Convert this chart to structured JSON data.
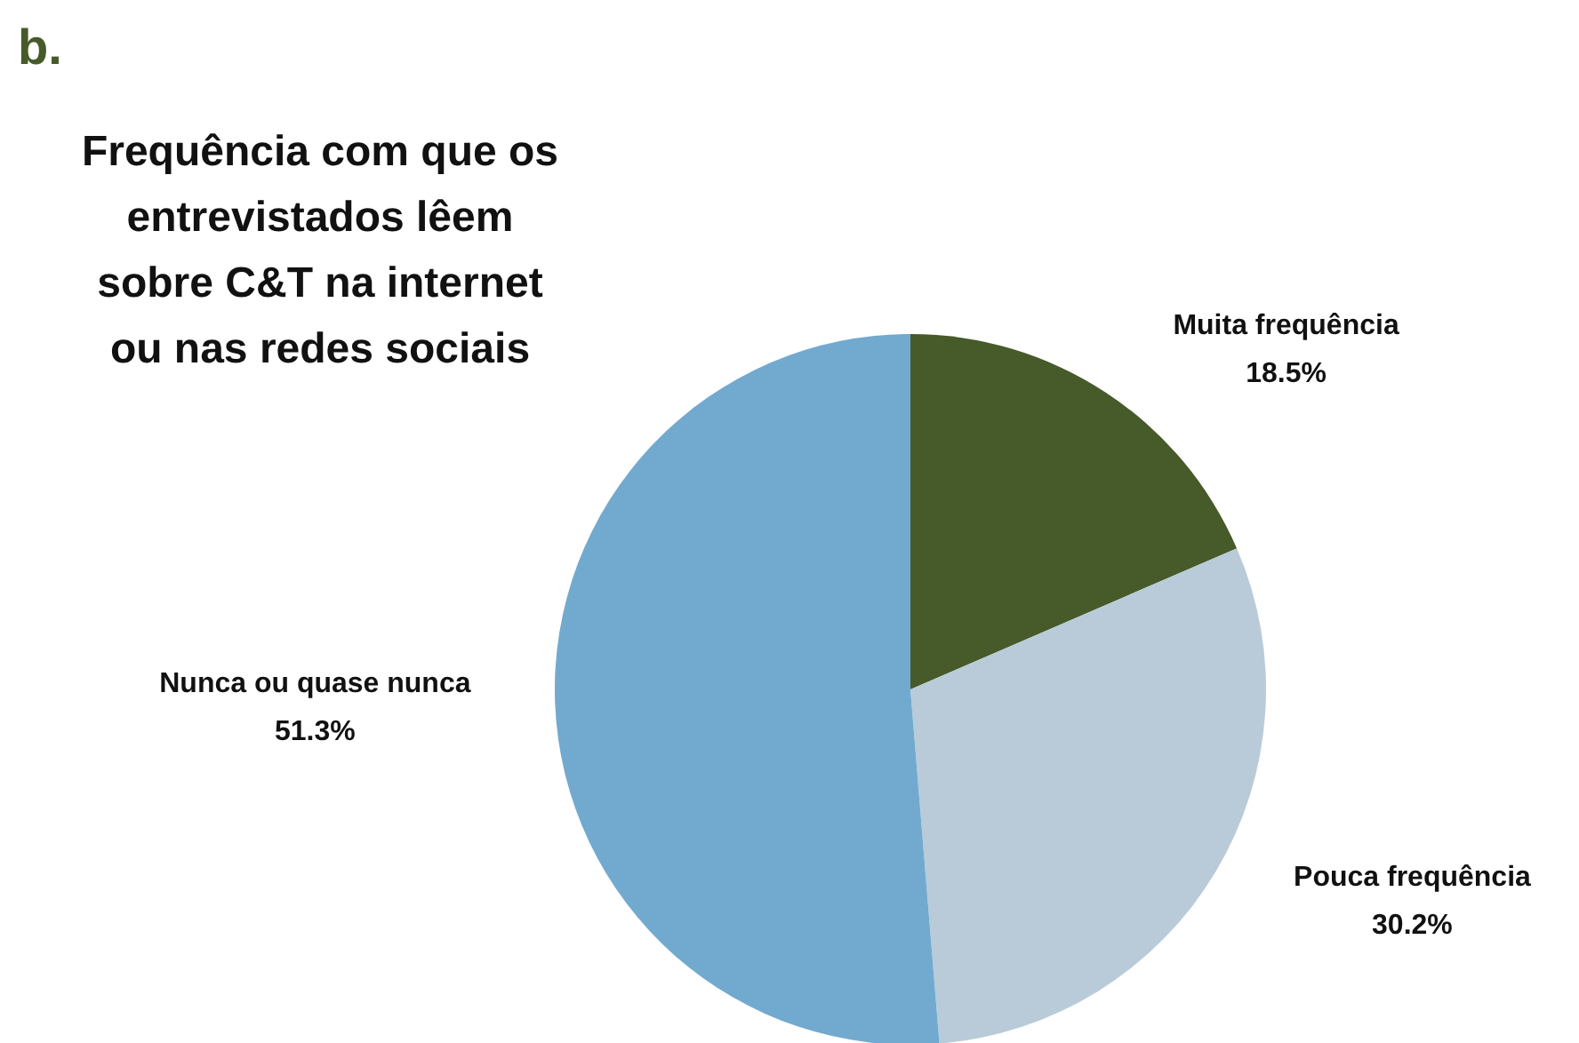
{
  "chart_data": {
    "type": "pie",
    "title": "Frequência com que os entrevistados lêem sobre C&T na internet ou nas redes sociais",
    "annotations": [
      "b."
    ],
    "categories": [
      "Muita frequência",
      "Pouca frequência",
      "Nunca ou quase nunca"
    ],
    "values": [
      18.5,
      30.2,
      51.3
    ],
    "value_labels": [
      "18.5%",
      "30.2%",
      "51.3%"
    ],
    "colors": [
      "#475a2a",
      "#b9cbd8",
      "#72aacf"
    ],
    "legend": false
  }
}
